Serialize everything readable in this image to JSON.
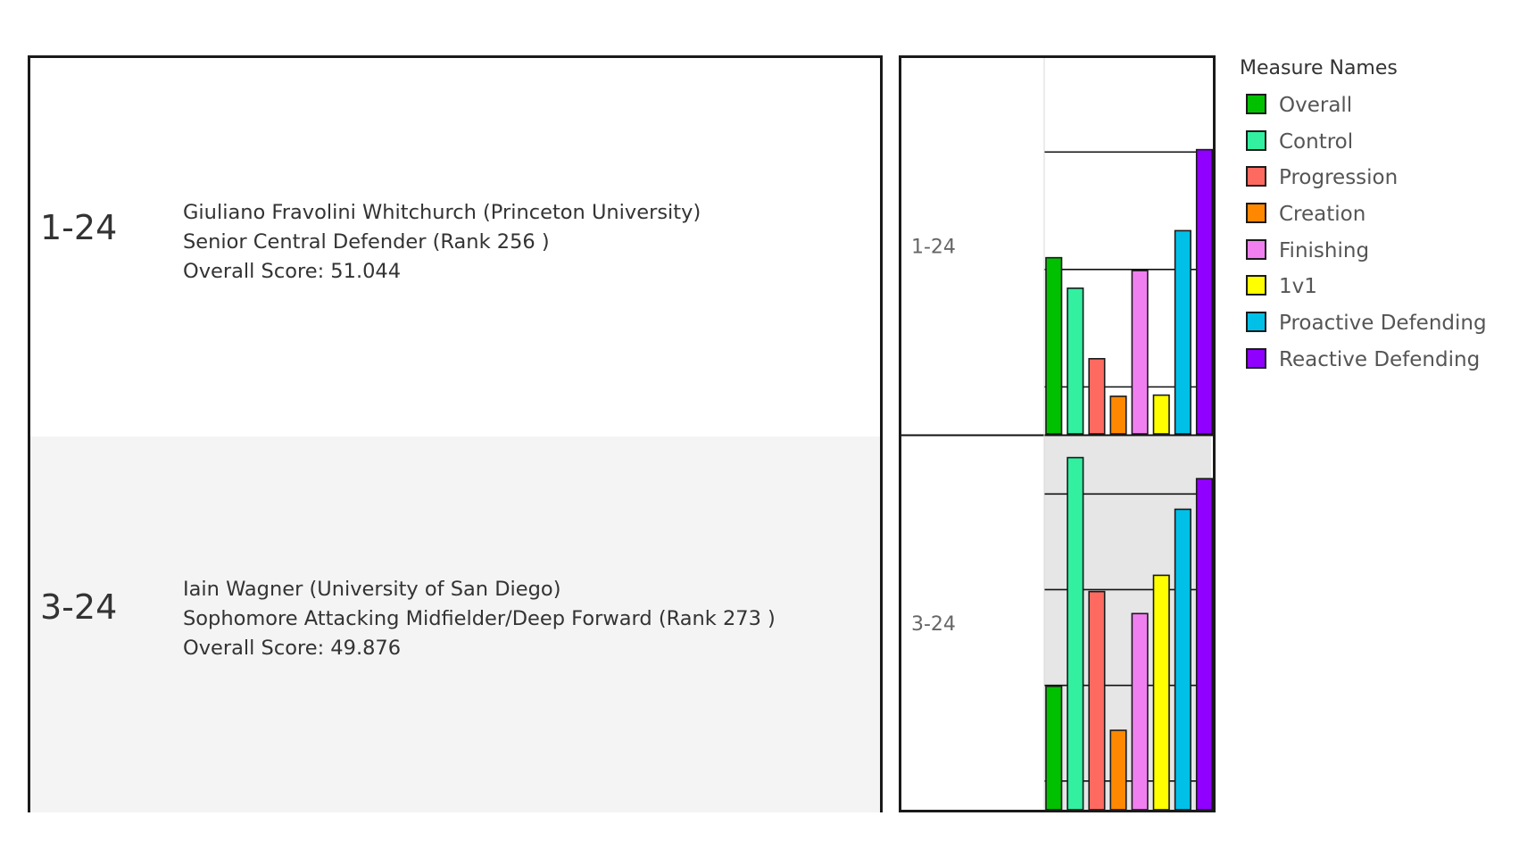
{
  "rows": [
    {
      "id": "1-24",
      "line1": "Giuliano Fravolini Whitchurch (Princeton University)",
      "line2": "Senior Central Defender  (Rank 256 )",
      "line3": "Overall Score: 51.044"
    },
    {
      "id": "3-24",
      "line1": "Iain Wagner (University of San Diego)",
      "line2": "Sophomore Attacking Midfielder/Deep Forward  (Rank 273 )",
      "line3": "Overall Score: 49.876"
    }
  ],
  "legend": {
    "title": "Measure Names",
    "items": [
      {
        "label": "Overall",
        "color": "#00c000"
      },
      {
        "label": "Control",
        "color": "#33f0a0"
      },
      {
        "label": "Progression",
        "color": "#ff6a60"
      },
      {
        "label": "Creation",
        "color": "#ff8800"
      },
      {
        "label": "Finishing",
        "color": "#f080f0"
      },
      {
        "label": "1v1",
        "color": "#ffff00"
      },
      {
        "label": "Proactive Defending",
        "color": "#00c0e8"
      },
      {
        "label": "Reactive Defending",
        "color": "#9000ff"
      }
    ]
  },
  "chart_data": {
    "type": "bar",
    "categories": [
      "Overall",
      "Control",
      "Progression",
      "Creation",
      "Finishing",
      "1v1",
      "Proactive Defending",
      "Reactive Defending"
    ],
    "row_labels": [
      "1-24",
      "3-24"
    ],
    "series": [
      {
        "name": "1-24",
        "values": [
          51.0,
          48.4,
          42.4,
          39.2,
          49.9,
          39.3,
          53.3,
          60.2
        ]
      },
      {
        "name": "3-24",
        "values": [
          49.9,
          73.8,
          59.8,
          45.3,
          57.5,
          61.5,
          68.4,
          71.6
        ]
      }
    ],
    "panel_ylims": [
      [
        36,
        68
      ],
      [
        37,
        76
      ]
    ],
    "gridlines": [
      [
        40,
        50,
        60
      ],
      [
        40,
        50,
        60,
        70
      ]
    ],
    "xlabel": "",
    "ylabel": "",
    "title": ""
  }
}
